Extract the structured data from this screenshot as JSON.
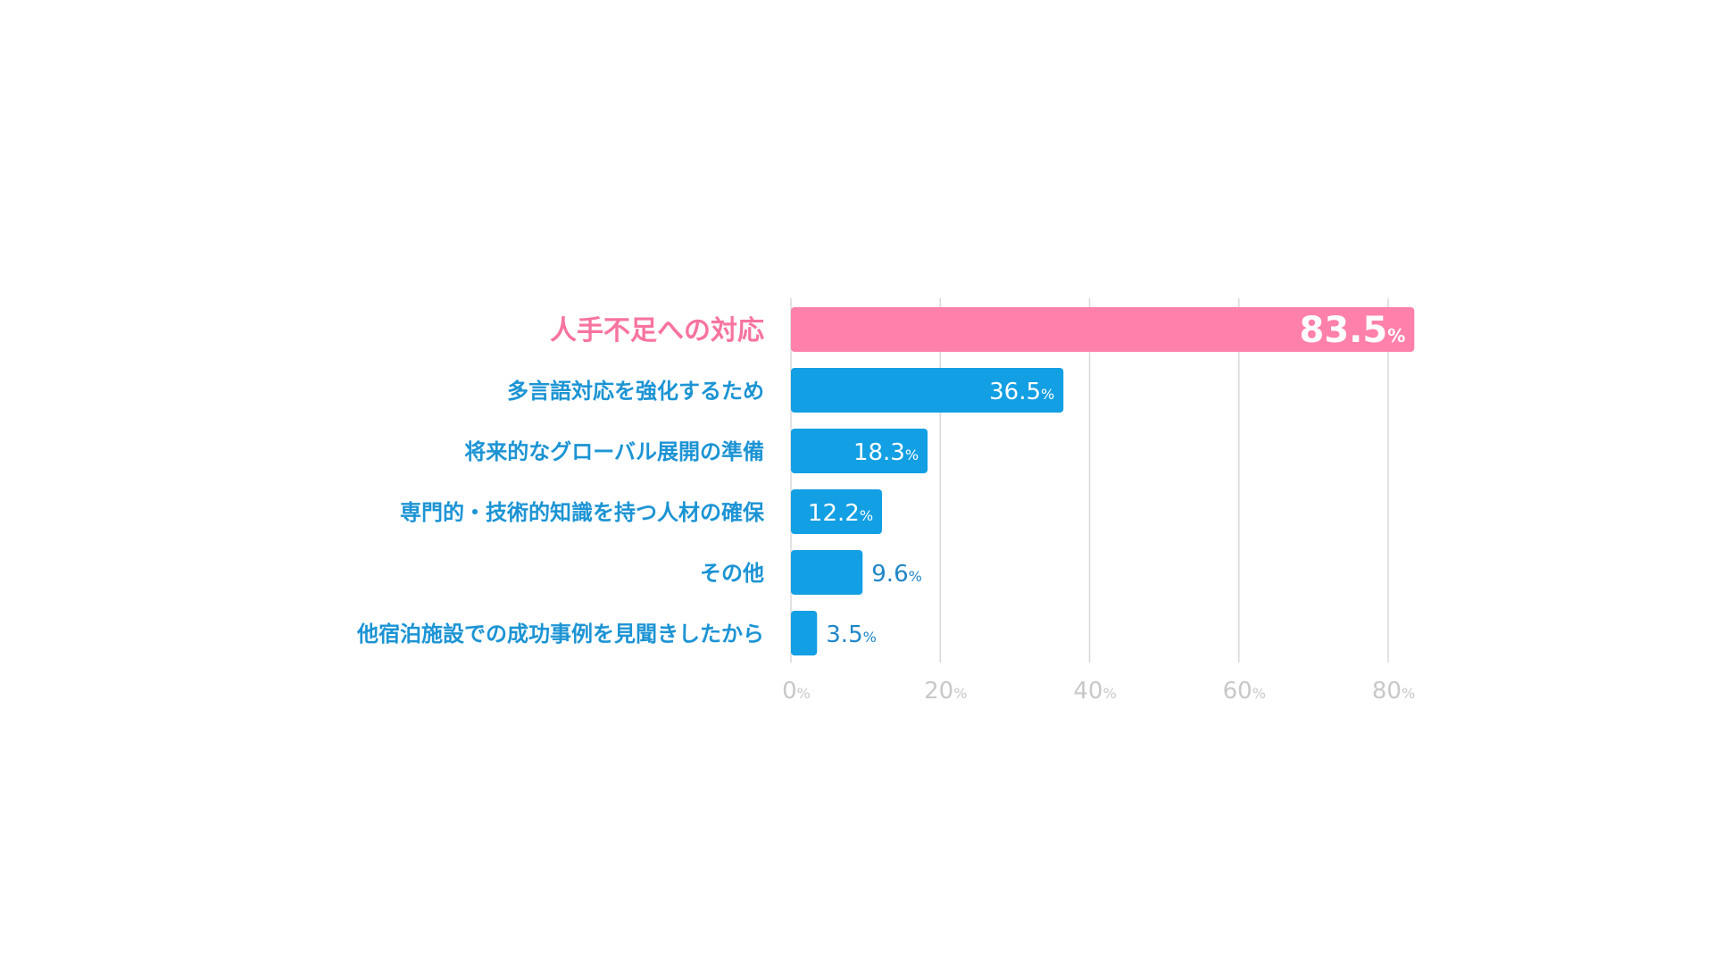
{
  "chart_data": {
    "type": "bar",
    "orientation": "horizontal",
    "categories": [
      "人手不足への対応",
      "多言語対応を強化するため",
      "将来的なグローバル展開の準備",
      "専門的・技術的知識を持つ人材の確保",
      "その他",
      "他宿泊施設での成功事例を見聞きしたから"
    ],
    "values": [
      83.5,
      36.5,
      18.3,
      12.2,
      9.6,
      3.5
    ],
    "value_labels": [
      "83.5",
      "36.5",
      "18.3",
      "12.2",
      "9.6",
      "3.5"
    ],
    "unit": "%",
    "x_ticks": [
      "0",
      "20",
      "40",
      "60",
      "80"
    ],
    "x_tick_values": [
      0,
      20,
      40,
      60,
      80
    ],
    "xlim": [
      0,
      83.5
    ],
    "grid": true,
    "legend": "none",
    "highlight_index": 0,
    "colors": {
      "highlight_bar": "#ff80ab",
      "highlight_label": "#f7749f",
      "bar": "#139fe3",
      "label": "#1c94d4",
      "value_text_inside": "#ffffff",
      "value_text_outside": "#1f86c7",
      "grid": "#d9d9d9",
      "tick": "#c8c8c8"
    }
  }
}
